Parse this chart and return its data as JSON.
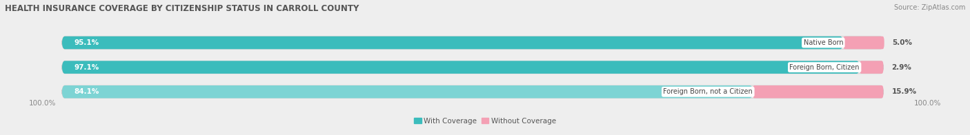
{
  "title": "HEALTH INSURANCE COVERAGE BY CITIZENSHIP STATUS IN CARROLL COUNTY",
  "source": "Source: ZipAtlas.com",
  "categories": [
    "Native Born",
    "Foreign Born, Citizen",
    "Foreign Born, not a Citizen"
  ],
  "with_coverage": [
    95.1,
    97.1,
    84.1
  ],
  "without_coverage": [
    5.0,
    2.9,
    15.9
  ],
  "color_with": "#3BBCBC",
  "color_with_light": "#7DD4D4",
  "color_without": "#F4A0B4",
  "bar_height": 0.52,
  "background_color": "#eeeeee",
  "bar_background": "#e0e0e0",
  "label_color_with": "#ffffff",
  "category_label_color": "#555555",
  "axis_label_left": "100.0%",
  "axis_label_right": "100.0%",
  "legend_with": "With Coverage",
  "legend_without": "Without Coverage",
  "title_fontsize": 8.5,
  "source_fontsize": 7,
  "bar_label_fontsize": 7.5,
  "category_fontsize": 7,
  "legend_fontsize": 7.5,
  "axis_fontsize": 7.5
}
